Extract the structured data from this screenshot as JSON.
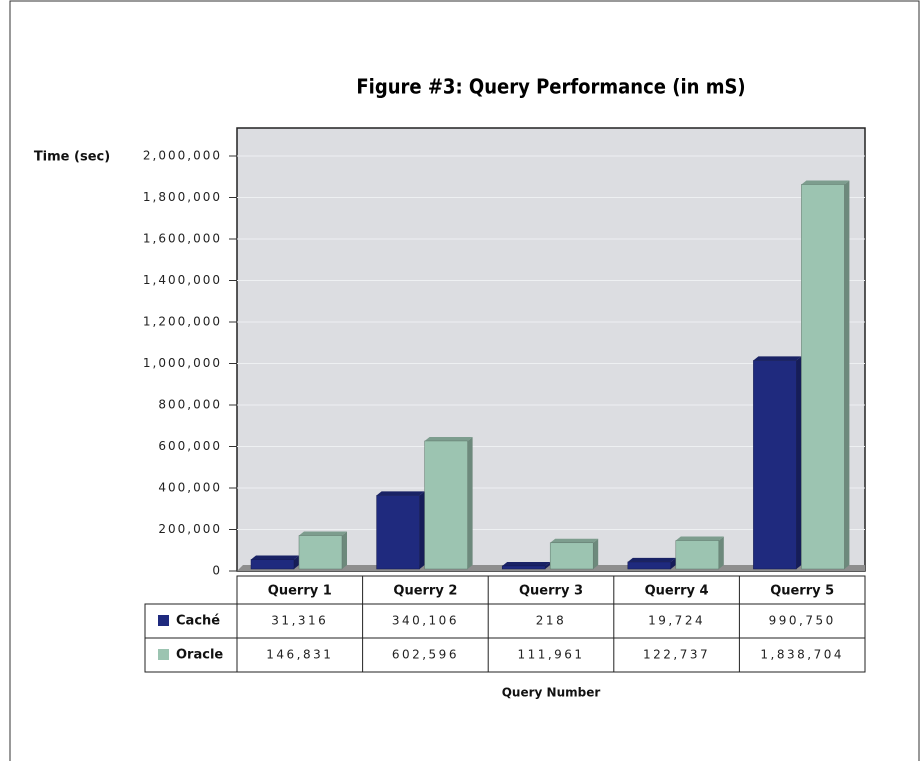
{
  "chart_data": {
    "type": "bar",
    "title": "Figure #3: Query Performance (in mS)",
    "y_label": "Time (sec)",
    "x_label": "Query Number",
    "categories": [
      "Querry 1",
      "Querry 2",
      "Querry 3",
      "Querry 4",
      "Querry 5"
    ],
    "series": [
      {
        "name": "Caché",
        "color": "#1f2a7e",
        "values": [
          31316,
          340106,
          218,
          19724,
          990750
        ],
        "value_labels": [
          "31,316",
          "340,106",
          "218",
          "19,724",
          "990,750"
        ]
      },
      {
        "name": "Oracle",
        "color": "#9cc4b1",
        "values": [
          146831,
          602596,
          111961,
          122737,
          1838704
        ],
        "value_labels": [
          "146,831",
          "602,596",
          "111,961",
          "122,737",
          "1,838,704"
        ]
      }
    ],
    "ylim": [
      0,
      2000000
    ],
    "yticks": [
      0,
      {
        "value": 200000,
        "label": "200,000"
      },
      {
        "value": 400000,
        "label": "400,000"
      },
      {
        "value": 600000,
        "label": "600,000"
      },
      {
        "value": 800000,
        "label": "800,000"
      },
      {
        "value": 1000000,
        "label": "1,000,000"
      },
      {
        "value": 1200000,
        "label": "1,200,000"
      },
      {
        "value": 1400000,
        "label": "1,400,000"
      },
      {
        "value": 1600000,
        "label": "1,600,000"
      },
      {
        "value": 1800000,
        "label": "1,800,000"
      },
      {
        "value": 2000000,
        "label": "2,000,000"
      }
    ],
    "grid": true
  }
}
